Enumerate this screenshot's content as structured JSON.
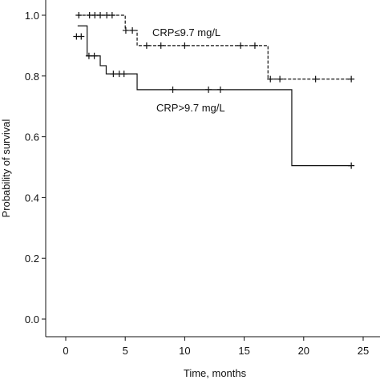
{
  "chart_data": {
    "type": "km",
    "xlabel": "Time, months",
    "ylabel": "Probability of survival",
    "xlim": [
      0,
      25
    ],
    "xticks": [
      0,
      5,
      10,
      15,
      20,
      25
    ],
    "ylim": [
      0,
      1
    ],
    "yticks": [
      {
        "value": 0,
        "label": "0.0"
      },
      {
        "value": 0.2,
        "label": "0.2"
      },
      {
        "value": 0.4,
        "label": "0.4"
      },
      {
        "value": 0.6,
        "label": "0.6"
      },
      {
        "value": 0.8,
        "label": "0.8"
      },
      {
        "value": 1,
        "label": "1.0"
      }
    ],
    "series": [
      {
        "name": "CRP≤9.7 mg/L",
        "color": "#111111",
        "dashed": true,
        "times": [
          1,
          5,
          6,
          17,
          24
        ],
        "survival": [
          1.0,
          0.95,
          0.9,
          0.79,
          0.79
        ],
        "censor_times": [
          1.1,
          2,
          2.45,
          2.9,
          3.45,
          3.9,
          5.05,
          5.6,
          6.8,
          8,
          10,
          14.7,
          15.9,
          17.2,
          18,
          21,
          24
        ],
        "censor_survival": [
          1.0,
          1.0,
          1.0,
          1.0,
          1.0,
          1.0,
          0.95,
          0.95,
          0.9,
          0.9,
          0.9,
          0.9,
          0.9,
          0.79,
          0.79,
          0.79,
          0.79
        ]
      },
      {
        "name": "CRP>9.7 mg/L",
        "color": "#111111",
        "dashed": false,
        "times": [
          1,
          1.8,
          2.9,
          3.4,
          6,
          19,
          24
        ],
        "survival": [
          0.965,
          0.866,
          0.834,
          0.807,
          0.755,
          0.505,
          0.505
        ],
        "censor_times": [
          0.9,
          1.3,
          1.95,
          2.4,
          4,
          4.5,
          4.9,
          9,
          12,
          13,
          24
        ],
        "censor_survival": [
          0.93,
          0.93,
          0.866,
          0.866,
          0.807,
          0.807,
          0.807,
          0.755,
          0.755,
          0.755,
          0.505
        ]
      }
    ]
  }
}
